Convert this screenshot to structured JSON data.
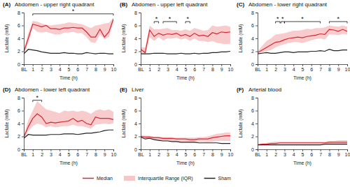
{
  "chart_data": [
    {
      "type": "line",
      "panel": "(A)",
      "title": "Abdomen - upper right quadrant",
      "x_label": "Time (h)",
      "y_label": "Lactate (mM)",
      "x": [
        0,
        0.5,
        1,
        1.5,
        2,
        2.5,
        3,
        3.5,
        4,
        4.5,
        5,
        5.5,
        6,
        6.5,
        7,
        7.5,
        8,
        8.5,
        9,
        9.5,
        10
      ],
      "xlim": [
        0,
        10
      ],
      "xticks": [
        {
          "value": 0,
          "label": "BL"
        },
        1,
        2,
        3,
        4,
        5,
        6,
        7,
        8,
        9,
        10
      ],
      "ylim": [
        0,
        8
      ],
      "yticks": [
        0,
        2,
        4,
        6,
        8
      ],
      "series": [
        {
          "name": "Median",
          "color": "#d62735",
          "values": [
            1.9,
            4.0,
            6.2,
            6.0,
            5.8,
            6.0,
            5.5,
            5.5,
            5.4,
            5.6,
            5.6,
            5.7,
            5.6,
            5.6,
            5.0,
            4.2,
            4.2,
            5.4,
            4.2,
            5.0,
            7.0
          ]
        },
        {
          "name": "Interquartile Range (IQR)",
          "type": "area",
          "color": "#f7c6c7",
          "lower": [
            1.5,
            3.3,
            5.6,
            5.0,
            4.9,
            5.0,
            4.8,
            4.6,
            4.6,
            4.9,
            4.9,
            5.0,
            4.8,
            4.8,
            4.2,
            3.4,
            3.3,
            4.6,
            3.9,
            4.2,
            6.5
          ],
          "upper": [
            2.3,
            4.8,
            6.7,
            6.6,
            6.3,
            6.1,
            6.0,
            6.1,
            6.2,
            6.3,
            6.5,
            6.4,
            6.3,
            6.2,
            5.9,
            5.6,
            6.0,
            6.1,
            6.3,
            6.4,
            7.2
          ]
        },
        {
          "name": "Sham",
          "color": "#222222",
          "values": [
            1.6,
            2.3,
            2.2,
            2.1,
            1.9,
            1.8,
            1.7,
            1.7,
            1.7,
            1.8,
            1.7,
            1.7,
            1.6,
            1.6,
            1.8,
            1.7,
            1.6,
            1.7,
            1.7,
            1.6,
            1.6
          ]
        }
      ],
      "annotations": [
        {
          "text": "*",
          "x0": 1,
          "x1": 10,
          "y": 7.8
        }
      ]
    },
    {
      "type": "line",
      "panel": "(B)",
      "title": "Abdomen - upper left quadrant",
      "x_label": "Time (h)",
      "y_label": "Lactate (mM)",
      "x": [
        0,
        0.5,
        1,
        1.5,
        2,
        2.5,
        3,
        3.5,
        4,
        4.5,
        5,
        5.5,
        6,
        6.5,
        7,
        7.5,
        8,
        8.5,
        9,
        9.5,
        10
      ],
      "xlim": [
        0,
        10
      ],
      "xticks": [
        {
          "value": 0,
          "label": "BL"
        },
        1,
        2,
        3,
        4,
        5,
        6,
        7,
        8,
        9,
        10
      ],
      "ylim": [
        0,
        8
      ],
      "yticks": [
        0,
        2,
        4,
        6,
        8
      ],
      "series": [
        {
          "color": "#d62735",
          "values": [
            2.3,
            1.8,
            5.3,
            4.3,
            4.8,
            4.5,
            4.7,
            4.6,
            4.8,
            4.4,
            4.6,
            4.3,
            4.8,
            4.4,
            4.5,
            4.3,
            4.9,
            4.7,
            5.0,
            4.9,
            5.0
          ]
        },
        {
          "type": "area",
          "color": "#f7c6c7",
          "lower": [
            1.8,
            1.5,
            4.2,
            3.6,
            4.2,
            3.7,
            4.0,
            4.0,
            4.1,
            3.8,
            4.0,
            3.6,
            4.0,
            3.6,
            3.6,
            3.4,
            3.6,
            3.3,
            3.2,
            3.1,
            3.2
          ],
          "upper": [
            2.6,
            2.6,
            6.0,
            5.4,
            5.4,
            5.5,
            5.6,
            5.3,
            5.3,
            5.2,
            5.4,
            5.2,
            5.6,
            5.4,
            5.2,
            5.3,
            6.0,
            5.8,
            5.9,
            6.0,
            5.8
          ]
        },
        {
          "color": "#222222",
          "values": [
            1.6,
            1.6,
            1.6,
            1.7,
            1.7,
            1.7,
            1.6,
            1.6,
            1.6,
            1.7,
            1.6,
            1.6,
            1.7,
            1.6,
            1.7,
            1.7,
            1.8,
            1.8,
            1.9,
            1.9,
            2.0
          ]
        }
      ],
      "annotations": [
        {
          "text": "*",
          "x0": 1.5,
          "x1": 2,
          "y": 6.6
        },
        {
          "text": "*",
          "x0": 2.5,
          "x1": 4,
          "y": 6.6
        },
        {
          "text": "*",
          "x0": 5,
          "x1": 5.5,
          "y": 6.6
        }
      ]
    },
    {
      "type": "line",
      "panel": "(C)",
      "title": "Abdomen - lower right quadrant",
      "x_label": "Time (h)",
      "y_label": "Lactate (mM)",
      "x": [
        0,
        0.5,
        1,
        1.5,
        2,
        2.5,
        3,
        3.5,
        4,
        4.5,
        5,
        5.5,
        6,
        6.5,
        7,
        7.5,
        8,
        8.5,
        9,
        9.5,
        10
      ],
      "xlim": [
        0,
        10
      ],
      "xticks": [
        {
          "value": 0,
          "label": "BL"
        },
        1,
        2,
        3,
        4,
        5,
        6,
        7,
        8,
        9,
        10
      ],
      "ylim": [
        0,
        8
      ],
      "yticks": [
        0,
        2,
        4,
        6,
        8
      ],
      "series": [
        {
          "color": "#d62735",
          "values": [
            1.8,
            2.2,
            2.6,
            3.0,
            3.4,
            3.5,
            3.8,
            4.0,
            4.1,
            4.2,
            4.1,
            4.3,
            4.4,
            4.5,
            4.7,
            4.6,
            5.4,
            5.3,
            5.1,
            5.4,
            5.1
          ]
        },
        {
          "type": "area",
          "color": "#f7c6c7",
          "lower": [
            1.6,
            1.8,
            2.0,
            2.2,
            2.6,
            2.9,
            3.1,
            3.3,
            3.4,
            3.4,
            3.3,
            3.5,
            3.7,
            3.9,
            4.0,
            3.8,
            4.6,
            4.6,
            4.5,
            4.7,
            4.6
          ],
          "upper": [
            2.0,
            2.8,
            3.6,
            4.0,
            4.6,
            4.7,
            4.8,
            5.0,
            5.2,
            5.2,
            5.3,
            5.5,
            5.4,
            5.6,
            5.6,
            5.7,
            6.0,
            5.9,
            5.8,
            6.0,
            5.8
          ]
        },
        {
          "color": "#222222",
          "values": [
            1.6,
            1.7,
            1.8,
            1.7,
            1.7,
            1.8,
            1.9,
            1.9,
            1.8,
            1.9,
            1.9,
            1.9,
            2.0,
            2.0,
            2.1,
            2.0,
            2.3,
            2.1,
            2.1,
            2.2,
            2.2
          ]
        }
      ],
      "annotations": [
        {
          "text": "*",
          "x0": 2,
          "x1": 2.5,
          "y": 6.6
        },
        {
          "text": "*",
          "x0": 2.6,
          "x1": 3,
          "y": 6.6
        },
        {
          "text": "*",
          "x0": 3,
          "x1": 7,
          "y": 6.6
        },
        {
          "text": "*",
          "x0": 8,
          "x1": 10,
          "y": 6.6
        }
      ]
    },
    {
      "type": "line",
      "panel": "(D)",
      "title": "Abdomen - lower left quadrant",
      "x_label": "Time (h)",
      "y_label": "Lactate (mM)",
      "x": [
        0,
        0.5,
        1,
        1.5,
        2,
        2.5,
        3,
        3.5,
        4,
        4.5,
        5,
        5.5,
        6,
        6.5,
        7,
        7.5,
        8,
        8.5,
        9,
        9.5,
        10
      ],
      "xlim": [
        0,
        10
      ],
      "xticks": [
        {
          "value": 0,
          "label": "BL"
        },
        1,
        2,
        3,
        4,
        5,
        6,
        7,
        8,
        9,
        10
      ],
      "ylim": [
        0,
        8
      ],
      "yticks": [
        0,
        2,
        4,
        6,
        8
      ],
      "series": [
        {
          "color": "#d62735",
          "values": [
            1.9,
            3.5,
            4.8,
            5.5,
            5.0,
            4.0,
            4.2,
            4.1,
            4.2,
            4.3,
            4.4,
            4.8,
            4.3,
            4.5,
            4.0,
            3.8,
            5.0,
            4.8,
            4.8,
            4.8,
            4.6
          ]
        },
        {
          "type": "area",
          "color": "#f7c6c7",
          "lower": [
            1.6,
            2.8,
            3.6,
            4.0,
            3.8,
            3.4,
            3.6,
            3.4,
            3.5,
            3.6,
            3.6,
            3.8,
            3.6,
            3.6,
            3.4,
            3.2,
            3.8,
            3.9,
            4.0,
            3.9,
            4.0
          ],
          "upper": [
            2.1,
            4.5,
            6.0,
            7.5,
            6.8,
            6.2,
            6.0,
            5.8,
            5.6,
            6.0,
            5.9,
            6.0,
            5.8,
            6.0,
            5.8,
            5.5,
            6.0,
            6.2,
            6.0,
            6.2,
            5.8
          ]
        },
        {
          "color": "#222222",
          "values": [
            1.7,
            2.3,
            2.2,
            2.2,
            2.2,
            2.2,
            2.3,
            2.3,
            2.3,
            2.4,
            2.4,
            2.4,
            2.3,
            2.4,
            2.5,
            2.5,
            2.6,
            2.7,
            2.9,
            3.0,
            3.0
          ]
        }
      ],
      "annotations": [
        {
          "text": "*",
          "x0": 1,
          "x1": 2,
          "y": 7.6
        }
      ]
    },
    {
      "type": "line",
      "panel": "(E)",
      "title": "Liver",
      "x_label": "Time (h)",
      "y_label": "Lactate (mM)",
      "x": [
        0,
        0.5,
        1,
        1.5,
        2,
        2.5,
        3,
        3.5,
        4,
        4.5,
        5,
        5.5,
        6,
        6.5,
        7,
        7.5,
        8,
        8.5,
        9,
        9.5,
        10
      ],
      "xlim": [
        0,
        10
      ],
      "xticks": [
        {
          "value": 0,
          "label": "BL"
        },
        1,
        2,
        3,
        4,
        5,
        6,
        7,
        8,
        9,
        10
      ],
      "ylim": [
        0,
        8
      ],
      "yticks": [
        0,
        2,
        4,
        6,
        8
      ],
      "series": [
        {
          "color": "#d62735",
          "values": [
            2.0,
            1.9,
            1.9,
            1.8,
            1.8,
            1.7,
            1.7,
            1.7,
            1.6,
            1.6,
            1.6,
            1.5,
            1.5,
            1.6,
            1.6,
            1.6,
            1.8,
            1.9,
            2.0,
            2.1,
            2.1
          ]
        },
        {
          "type": "area",
          "color": "#f7c6c7",
          "lower": [
            1.8,
            1.7,
            1.6,
            1.5,
            1.4,
            1.3,
            1.3,
            1.3,
            1.2,
            1.2,
            1.2,
            1.1,
            1.1,
            1.2,
            1.2,
            1.1,
            1.2,
            1.3,
            1.3,
            1.3,
            1.3
          ],
          "upper": [
            2.2,
            2.1,
            2.1,
            2.0,
            2.0,
            1.9,
            1.9,
            1.9,
            1.8,
            1.8,
            1.8,
            1.8,
            1.8,
            1.9,
            1.9,
            2.0,
            2.2,
            2.4,
            2.5,
            2.6,
            2.6
          ]
        },
        {
          "color": "#222222",
          "values": [
            1.9,
            1.6,
            1.7,
            1.5,
            1.4,
            1.3,
            1.3,
            1.2,
            1.2,
            1.1,
            1.1,
            1.1,
            1.1,
            1.0,
            1.0,
            1.0,
            1.0,
            1.0,
            0.9,
            0.9,
            0.9
          ]
        }
      ]
    },
    {
      "type": "line",
      "panel": "(F)",
      "title": "Arterial blood",
      "x_label": "Time (h)",
      "y_label": "Lactate (mM)",
      "x": [
        0,
        0.5,
        1,
        1.5,
        2,
        2.5,
        3,
        3.5,
        4,
        4.5,
        5,
        5.5,
        6,
        6.5,
        7,
        7.5,
        8,
        8.5,
        9,
        9.5,
        10
      ],
      "xlim": [
        0,
        10
      ],
      "xticks": [
        {
          "value": 0,
          "label": "BL"
        },
        1,
        2,
        3,
        4,
        5,
        6,
        7,
        8,
        9,
        10
      ],
      "ylim": [
        0,
        8
      ],
      "yticks": [
        0,
        2,
        4,
        6,
        8
      ],
      "series": [
        {
          "color": "#d62735",
          "values": [
            0.7,
            0.8,
            0.8,
            0.9,
            0.9,
            1.0,
            1.0,
            1.0,
            1.0,
            1.0,
            1.0,
            1.0,
            1.0,
            1.0,
            1.0,
            1.0,
            1.1,
            1.1,
            1.1,
            1.1,
            1.1
          ]
        },
        {
          "type": "area",
          "color": "#f7c6c7",
          "lower": [
            0.6,
            0.7,
            0.7,
            0.7,
            0.7,
            0.8,
            0.8,
            0.8,
            0.8,
            0.8,
            0.8,
            0.8,
            0.8,
            0.8,
            0.8,
            0.8,
            0.8,
            0.8,
            0.8,
            0.8,
            0.8
          ],
          "upper": [
            0.8,
            0.9,
            1.0,
            1.1,
            1.2,
            1.2,
            1.2,
            1.2,
            1.2,
            1.2,
            1.2,
            1.2,
            1.2,
            1.2,
            1.2,
            1.2,
            1.3,
            1.3,
            1.4,
            1.4,
            1.4
          ]
        },
        {
          "color": "#222222",
          "values": [
            0.7,
            0.7,
            0.7,
            0.7,
            0.7,
            0.7,
            0.7,
            0.7,
            0.7,
            0.7,
            0.7,
            0.7,
            0.7,
            0.7,
            0.7,
            0.8,
            0.8,
            0.8,
            0.8,
            0.8,
            0.8
          ]
        }
      ]
    }
  ]
}
